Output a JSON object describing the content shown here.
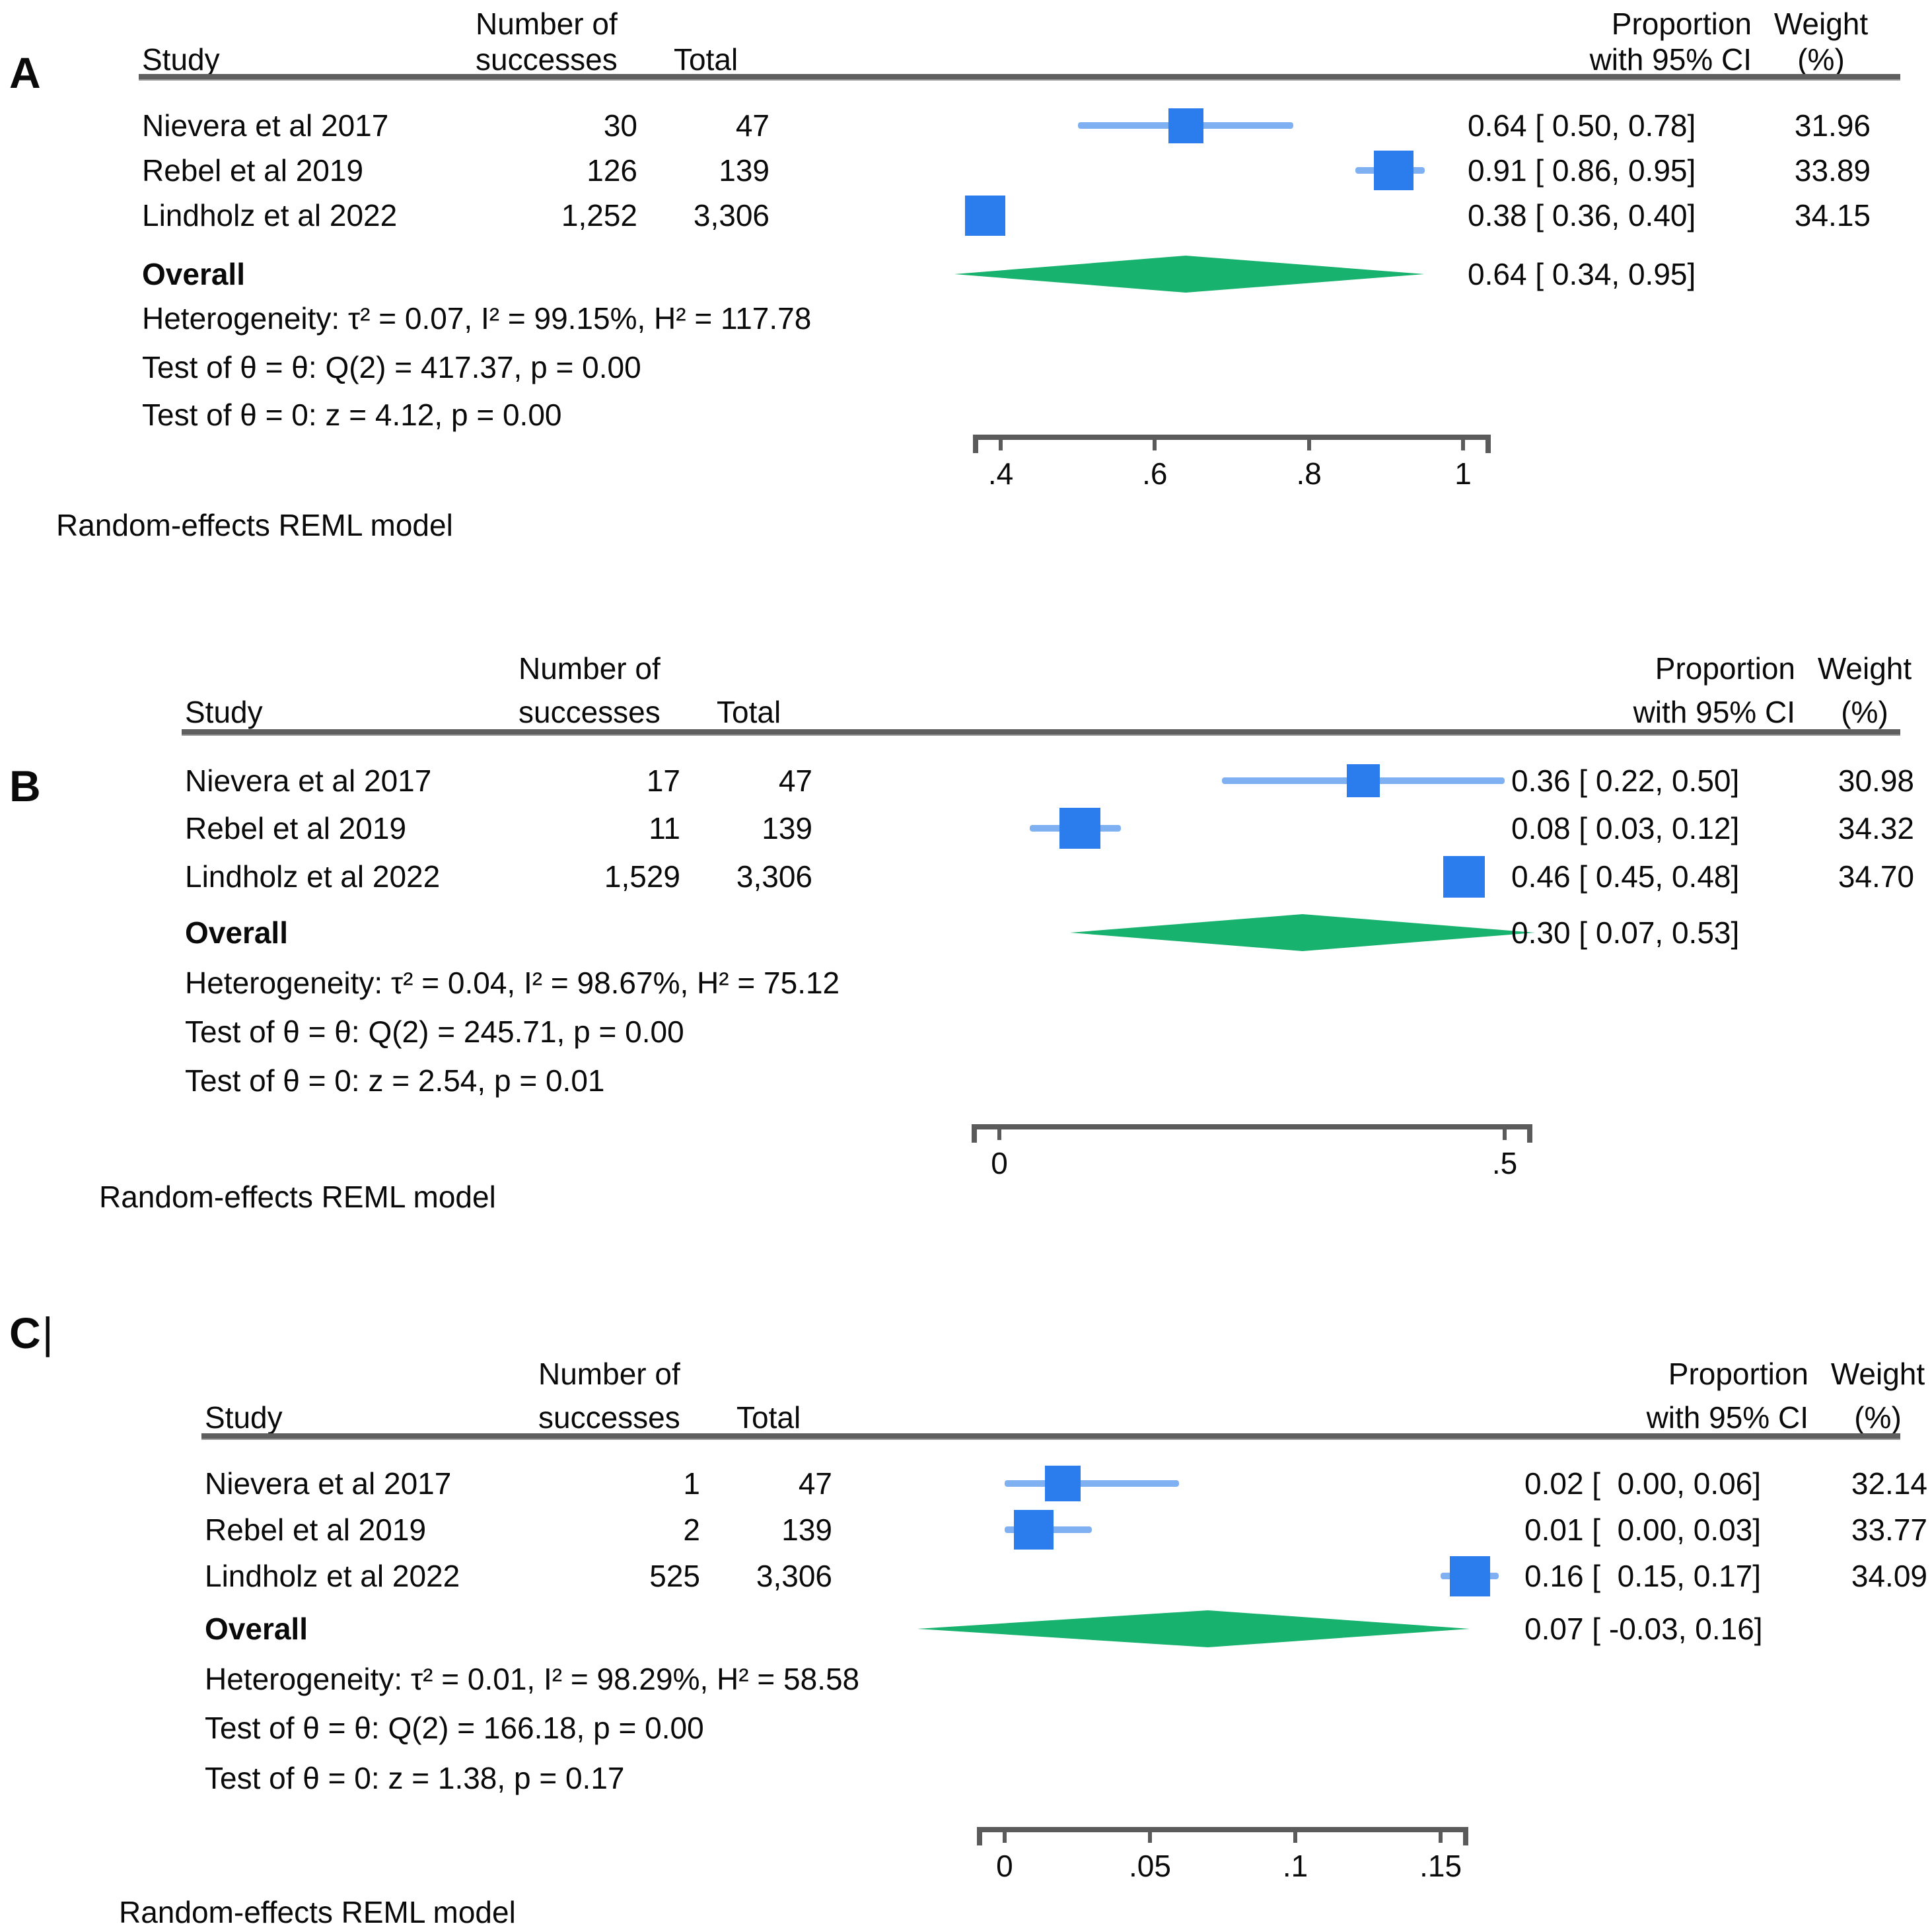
{
  "figure": {
    "footnote": "Random-effects REML model",
    "columns": {
      "study": "Study",
      "successes_l1": "Number of",
      "successes_l2": "successes",
      "total": "Total",
      "proportion_l1": "Proportion",
      "proportion_l2": "with 95% CI",
      "weight_l1": "Weight",
      "weight_l2": "(%)"
    },
    "colors": {
      "square": "#2B7CEC",
      "ci_line": "#7FB0F2",
      "diamond": "#17B26E",
      "axis": "#5B5B5B",
      "header_rule": "#5F5F5F"
    }
  },
  "chart_data": {
    "type": "scatter",
    "subtype": "forest-plot-meta-analysis",
    "legend": "none",
    "panels": [
      {
        "label": "A",
        "axis": {
          "ticks": [
            0.4,
            0.6,
            0.8,
            1.0
          ],
          "tick_labels": [
            ".4",
            ".6",
            ".8",
            "1"
          ],
          "xlim": [
            0.31,
            1.02
          ],
          "grid": false
        },
        "studies": [
          {
            "name": "Nievera et al 2017",
            "successes": "30",
            "total": "47",
            "est": 0.64,
            "lo": 0.5,
            "hi": 0.78,
            "ci_text": "0.64 [ 0.50, 0.78]",
            "weight": 31.96,
            "weight_text": "31.96"
          },
          {
            "name": "Rebel et al 2019",
            "successes": "126",
            "total": "139",
            "est": 0.91,
            "lo": 0.86,
            "hi": 0.95,
            "ci_text": "0.91 [ 0.86, 0.95]",
            "weight": 33.89,
            "weight_text": "33.89"
          },
          {
            "name": "Lindholz et al 2022",
            "successes": "1,252",
            "total": "3,306",
            "est": 0.38,
            "lo": 0.36,
            "hi": 0.4,
            "ci_text": "0.38 [ 0.36, 0.40]",
            "weight": 34.15,
            "weight_text": "34.15"
          }
        ],
        "overall": {
          "label": "Overall",
          "est": 0.64,
          "lo": 0.34,
          "hi": 0.95,
          "ci_text": "0.64 [ 0.34, 0.95]"
        },
        "heterogeneity_text": "Heterogeneity: τ² = 0.07, I² = 99.15%, H² = 117.78",
        "test_group_text": "Test of θ = θ: Q(2) = 417.37, p = 0.00",
        "test_zero_text": "Test of θ = 0: z = 4.12, p = 0.00"
      },
      {
        "label": "B",
        "axis": {
          "ticks": [
            0,
            0.5
          ],
          "tick_labels": [
            "0",
            ".5"
          ],
          "xlim": [
            -0.04,
            0.58
          ],
          "grid": false
        },
        "studies": [
          {
            "name": "Nievera et al 2017",
            "successes": "17",
            "total": "47",
            "est": 0.36,
            "lo": 0.22,
            "hi": 0.5,
            "ci_text": "0.36 [ 0.22, 0.50]",
            "weight": 30.98,
            "weight_text": "30.98"
          },
          {
            "name": "Rebel et al 2019",
            "successes": "11",
            "total": "139",
            "est": 0.08,
            "lo": 0.03,
            "hi": 0.12,
            "ci_text": "0.08 [ 0.03, 0.12]",
            "weight": 34.32,
            "weight_text": "34.32"
          },
          {
            "name": "Lindholz et al 2022",
            "successes": "1,529",
            "total": "3,306",
            "est": 0.46,
            "lo": 0.45,
            "hi": 0.48,
            "ci_text": "0.46 [ 0.45, 0.48]",
            "weight": 34.7,
            "weight_text": "34.70"
          }
        ],
        "overall": {
          "label": "Overall",
          "est": 0.3,
          "lo": 0.07,
          "hi": 0.53,
          "ci_text": "0.30 [ 0.07, 0.53]"
        },
        "heterogeneity_text": "Heterogeneity: τ² = 0.04, I² = 98.67%, H² = 75.12",
        "test_group_text": "Test of θ = θ: Q(2) = 245.71, p = 0.00",
        "test_zero_text": "Test of θ = 0: z = 2.54, p = 0.01"
      },
      {
        "label": "C",
        "cursor_artifact": "|",
        "axis": {
          "ticks": [
            0,
            0.05,
            0.1,
            0.15
          ],
          "tick_labels": [
            "0",
            ".05",
            ".1",
            ".15"
          ],
          "xlim": [
            -0.03,
            0.18
          ],
          "grid": false
        },
        "studies": [
          {
            "name": "Nievera et al 2017",
            "successes": "1",
            "total": "47",
            "est": 0.02,
            "lo": 0.0,
            "hi": 0.06,
            "ci_text": "0.02 [  0.00, 0.06]",
            "weight": 32.14,
            "weight_text": "32.14"
          },
          {
            "name": "Rebel et al 2019",
            "successes": "2",
            "total": "139",
            "est": 0.01,
            "lo": 0.0,
            "hi": 0.03,
            "ci_text": "0.01 [  0.00, 0.03]",
            "weight": 33.77,
            "weight_text": "33.77"
          },
          {
            "name": "Lindholz et al 2022",
            "successes": "525",
            "total": "3,306",
            "est": 0.16,
            "lo": 0.15,
            "hi": 0.17,
            "ci_text": "0.16 [  0.15, 0.17]",
            "weight": 34.09,
            "weight_text": "34.09"
          }
        ],
        "overall": {
          "label": "Overall",
          "est": 0.07,
          "lo": -0.03,
          "hi": 0.16,
          "ci_text": "0.07 [ -0.03, 0.16]"
        },
        "heterogeneity_text": "Heterogeneity: τ² = 0.01, I² = 98.29%, H² = 58.58",
        "test_group_text": "Test of θ = θ: Q(2) = 166.18, p = 0.00",
        "test_zero_text": "Test of θ = 0: z = 1.38, p = 0.17"
      }
    ]
  }
}
